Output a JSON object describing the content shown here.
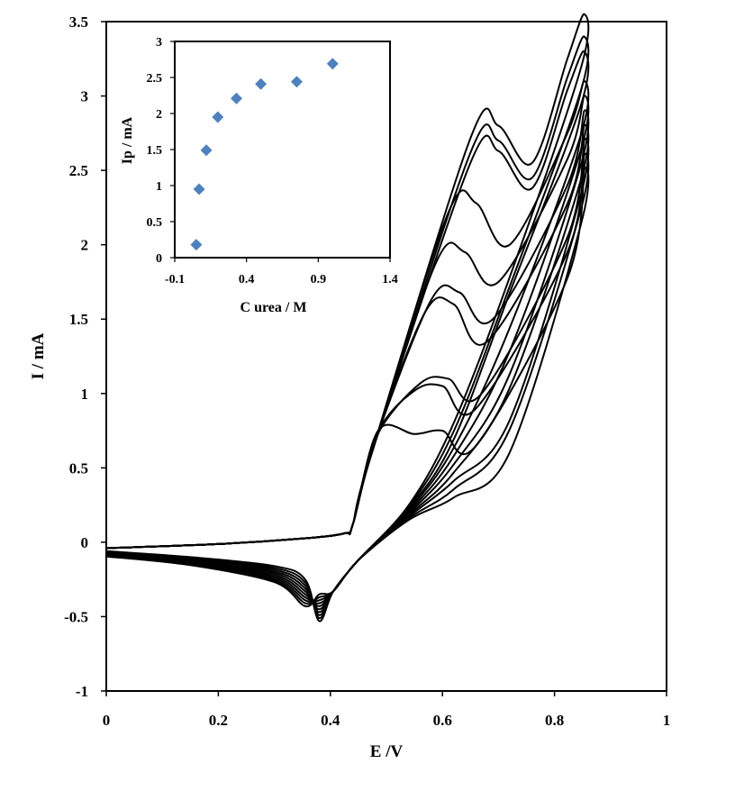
{
  "chart_data": [
    {
      "type": "line",
      "role": "main",
      "xlabel": "E /V",
      "ylabel": "I / mA",
      "xlim": [
        0,
        1
      ],
      "ylim": [
        -1,
        3.5
      ],
      "x_ticks": [
        0,
        0.2,
        0.4,
        0.6,
        0.8,
        1
      ],
      "y_ticks": [
        -1,
        -0.5,
        0,
        0.5,
        1,
        1.5,
        2,
        2.5,
        3,
        3.5
      ],
      "x_tick_labels": [
        "0",
        "0.2",
        "0.4",
        "0.6",
        "0.8",
        "1"
      ],
      "y_tick_labels": [
        "-1",
        "-0.5",
        "0",
        "0.5",
        "1",
        "1.5",
        "2",
        "2.5",
        "3",
        "3.5"
      ],
      "grid": false,
      "line_color": "#000000",
      "series": [
        {
          "peak_E": 0.7,
          "peak_I": 2.8,
          "end_I": 3.55,
          "valley_I": 2.55,
          "cathodic_I": -0.53
        },
        {
          "peak_E": 0.7,
          "peak_I": 2.7,
          "end_I": 3.4,
          "valley_I": 2.45,
          "cathodic_I": -0.51
        },
        {
          "peak_E": 0.7,
          "peak_I": 2.63,
          "end_I": 3.3,
          "valley_I": 2.38,
          "cathodic_I": -0.49
        },
        {
          "peak_E": 0.66,
          "peak_I": 2.28,
          "end_I": 3.1,
          "valley_I": 2.0,
          "cathodic_I": -0.47
        },
        {
          "peak_E": 0.64,
          "peak_I": 1.95,
          "end_I": 3.0,
          "valley_I": 1.75,
          "cathodic_I": -0.45
        },
        {
          "peak_E": 0.63,
          "peak_I": 1.68,
          "end_I": 2.9,
          "valley_I": 1.5,
          "cathodic_I": -0.43
        },
        {
          "peak_E": 0.62,
          "peak_I": 1.6,
          "end_I": 2.8,
          "valley_I": 1.35,
          "cathodic_I": -0.41
        },
        {
          "peak_E": 0.61,
          "peak_I": 1.1,
          "end_I": 2.7,
          "valley_I": 1.0,
          "cathodic_I": -0.39
        },
        {
          "peak_E": 0.6,
          "peak_I": 1.05,
          "end_I": 2.6,
          "valley_I": 0.9,
          "cathodic_I": -0.37
        },
        {
          "peak_E": 0.6,
          "peak_I": 0.75,
          "end_I": 2.5,
          "valley_I": 0.65,
          "cathodic_I": -0.35
        }
      ]
    },
    {
      "type": "scatter",
      "role": "inset",
      "xlabel": "C urea / M",
      "ylabel": "Ip / mA",
      "xlim": [
        -0.1,
        1.4
      ],
      "ylim": [
        0,
        3
      ],
      "x_ticks": [
        -0.1,
        0.4,
        0.9,
        1.4
      ],
      "y_ticks": [
        0,
        0.5,
        1,
        1.5,
        2,
        2.5,
        3
      ],
      "x_tick_labels": [
        "-0.1",
        "0.4",
        "0.9",
        "1.4"
      ],
      "y_tick_labels": [
        "0",
        "0.5",
        "1",
        "1.5",
        "2",
        "2.5",
        "3"
      ],
      "marker": "diamond",
      "marker_color": "#4f81bd",
      "x": [
        0.05,
        0.07,
        0.12,
        0.2,
        0.33,
        0.5,
        0.75,
        1.0
      ],
      "y": [
        0.18,
        0.95,
        1.49,
        1.95,
        2.21,
        2.41,
        2.44,
        2.69
      ]
    }
  ]
}
